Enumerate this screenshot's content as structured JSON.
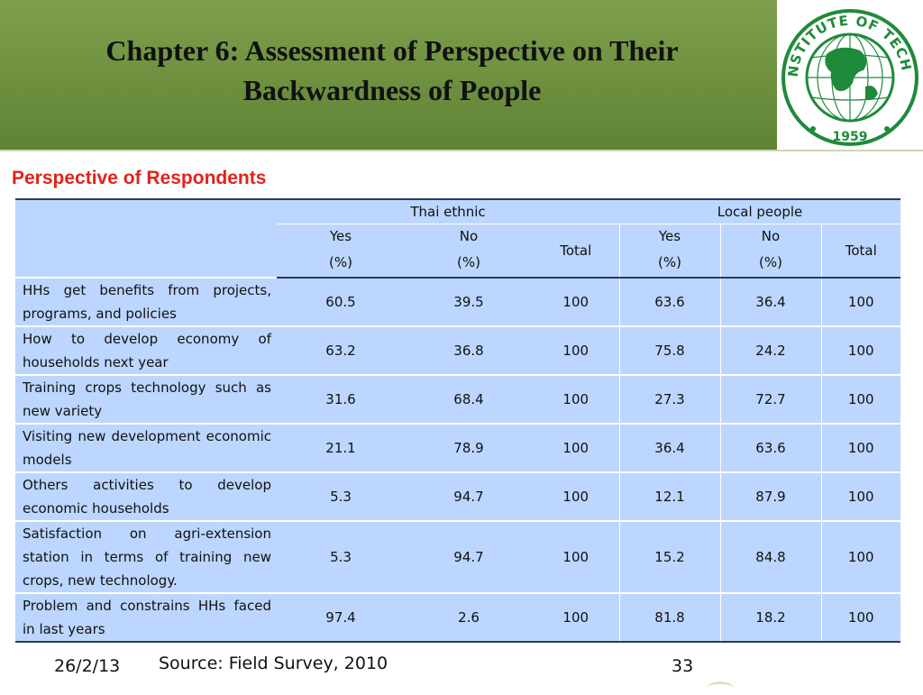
{
  "header": {
    "title_line1": "Chapter 6: Assessment of Perspective on Their",
    "title_line2": "Backwardness of People"
  },
  "logo": {
    "text_top": "ASIAN INSTITUTE OF TECHNOLOGY",
    "year": "1959"
  },
  "subtitle": "Perspective of Respondents",
  "table": {
    "group_headers": [
      "Thai ethnic",
      "Local people"
    ],
    "col_yes": "Yes",
    "col_no": "No",
    "col_total": "Total",
    "col_unit": "(%)",
    "rows": [
      {
        "label": "HHs get benefits from projects, programs, and policies",
        "values": [
          "60.5",
          "39.5",
          "100",
          "63.6",
          "36.4",
          "100"
        ]
      },
      {
        "label": "How to develop economy of households next year",
        "values": [
          "63.2",
          "36.8",
          "100",
          "75.8",
          "24.2",
          "100"
        ]
      },
      {
        "label": "Training crops technology such as new variety",
        "values": [
          "31.6",
          "68.4",
          "100",
          "27.3",
          "72.7",
          "100"
        ]
      },
      {
        "label": "Visiting new development economic  models",
        "values": [
          "21.1",
          "78.9",
          "100",
          "36.4",
          "63.6",
          "100"
        ]
      },
      {
        "label": "Others activities to develop economic households",
        "values": [
          "5.3",
          "94.7",
          "100",
          "12.1",
          "87.9",
          "100"
        ]
      },
      {
        "label": "Satisfaction on agri-extension station in terms of training new crops, new technology.",
        "values": [
          "5.3",
          "94.7",
          "100",
          "15.2",
          "84.8",
          "100"
        ]
      },
      {
        "label": "Problem and constrains HHs faced in last years",
        "values": [
          "97.4",
          "2.6",
          "100",
          "81.8",
          "18.2",
          "100"
        ]
      }
    ]
  },
  "footer": {
    "date": "26/2/13",
    "source": "Source: Field Survey, 2010",
    "page": "33"
  },
  "colors": {
    "header_green": "#6f9140",
    "subtitle_red": "#e2231a",
    "table_fill": "#bcd6ff",
    "logo_green": "#1f8a3a"
  }
}
